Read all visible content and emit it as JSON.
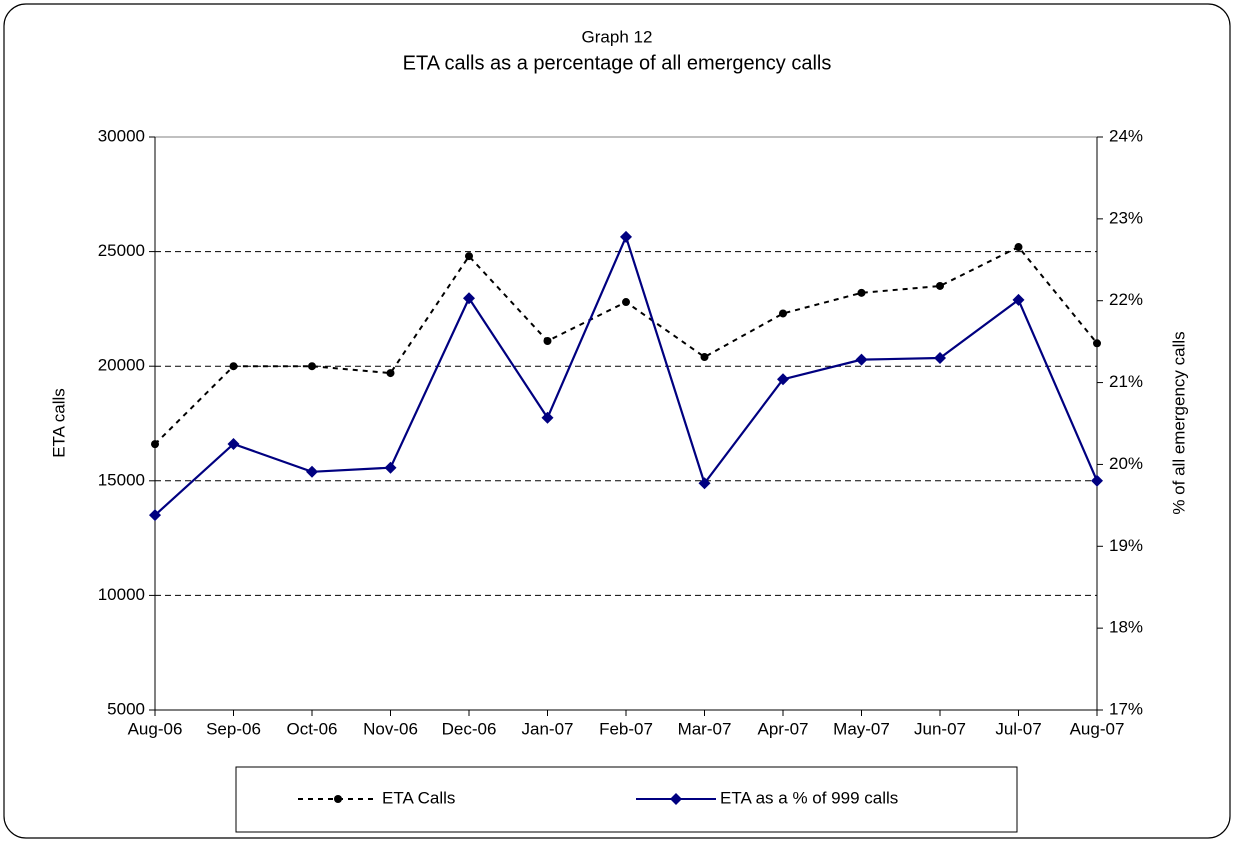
{
  "chart_data": {
    "type": "line",
    "title": "Graph 12",
    "subtitle": "ETA calls as a percentage of all emergency calls",
    "ylabel": "ETA calls",
    "y2label": "% of all emergency calls",
    "categories": [
      "Aug-06",
      "Sep-06",
      "Oct-06",
      "Nov-06",
      "Dec-06",
      "Jan-07",
      "Feb-07",
      "Mar-07",
      "Apr-07",
      "May-07",
      "Jun-07",
      "Jul-07",
      "Aug-07"
    ],
    "series": [
      {
        "name": "ETA Calls",
        "color": "#000000",
        "style": "dashed",
        "marker": "circle",
        "values": [
          16600,
          20000,
          20000,
          19700,
          24800,
          21100,
          22800,
          20400,
          22300,
          23200,
          23500,
          25200,
          21000
        ]
      },
      {
        "name": "ETA as a % of 999 calls",
        "color": "#000080",
        "style": "solid",
        "marker": "diamond",
        "axis": "y2",
        "values": [
          19.38,
          20.25,
          19.91,
          19.96,
          22.03,
          20.57,
          22.78,
          19.77,
          21.04,
          21.28,
          21.3,
          22.01,
          19.8
        ]
      }
    ],
    "ylim": [
      5000,
      30000
    ],
    "yticks": [
      5000,
      10000,
      15000,
      20000,
      25000,
      30000
    ],
    "y2lim": [
      17,
      24
    ],
    "y2ticks": [
      {
        "value": 17,
        "label": "17%"
      },
      {
        "value": 18,
        "label": "18%"
      },
      {
        "value": 19,
        "label": "19%"
      },
      {
        "value": 20,
        "label": "20%"
      },
      {
        "value": 21,
        "label": "21%"
      },
      {
        "value": 22,
        "label": "22%"
      },
      {
        "value": 23,
        "label": "23%"
      },
      {
        "value": 24,
        "label": "24%"
      }
    ],
    "grid": true,
    "legend": "bottom"
  }
}
